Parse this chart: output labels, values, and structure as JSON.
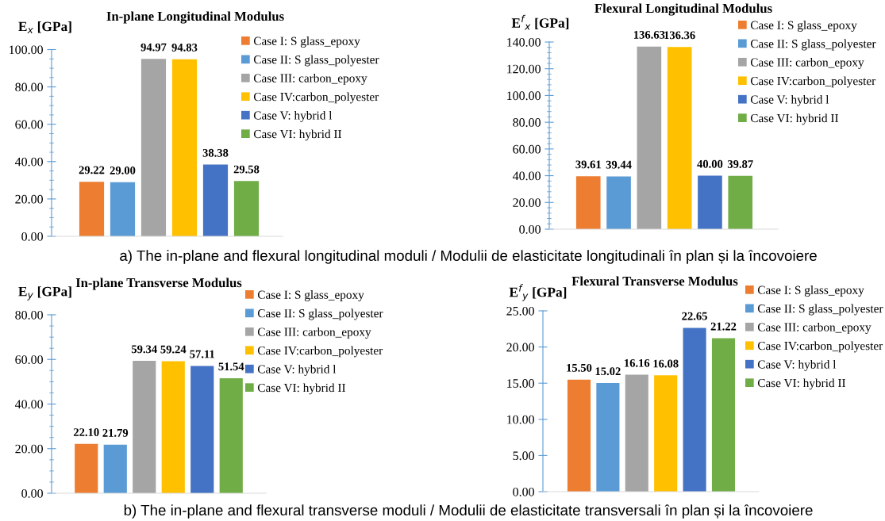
{
  "chart_data": [
    {
      "type": "bar",
      "title": "In-plane Longitudinal Modulus",
      "ylabel": "E$_{x}$ [GPa]",
      "categories": [
        null
      ],
      "legend": "right",
      "tick_labels": "y",
      "ylim": [
        0,
        100
      ],
      "yticks": [
        {
          "value": 0,
          "label": "0.00"
        },
        {
          "value": 20,
          "label": "20.00"
        },
        {
          "value": 40,
          "label": "40.00"
        },
        {
          "value": 60,
          "label": "60.00"
        },
        {
          "value": 80,
          "label": "80.00"
        },
        {
          "value": 100,
          "label": "100.00"
        }
      ],
      "series": [
        {
          "name": "Case I: S glass_epoxy",
          "color": "#ed7d31",
          "values": [
            29.22
          ],
          "value_labels": [
            "29.22"
          ]
        },
        {
          "name": "Case II: S glass_polyester",
          "color": "#5b9bd5",
          "values": [
            29.0
          ],
          "value_labels": [
            "29.00"
          ]
        },
        {
          "name": "Case III: carbon_epoxy",
          "color": "#a5a5a5",
          "values": [
            94.97
          ],
          "value_labels": [
            "94.97"
          ]
        },
        {
          "name": "Case IV:carbon_polyester",
          "color": "#ffc000",
          "values": [
            94.83
          ],
          "value_labels": [
            "94.83"
          ]
        },
        {
          "name": "Case V: hybrid l",
          "color": "#4472c4",
          "values": [
            38.38
          ],
          "value_labels": [
            "38.38"
          ]
        },
        {
          "name": "Case VI: hybrid II",
          "color": "#70ad47",
          "values": [
            29.58
          ],
          "value_labels": [
            "29.58"
          ]
        }
      ]
    },
    {
      "type": "bar",
      "title": "Flexural Longitudinal Modulus",
      "ylabel": "E$^{f}$$_{x}$ [GPa]",
      "categories": [
        null
      ],
      "legend": "right",
      "tick_labels": "y",
      "ylim": [
        0,
        140
      ],
      "yticks": [
        {
          "value": 0,
          "label": "0.00"
        },
        {
          "value": 20,
          "label": "20.00"
        },
        {
          "value": 40,
          "label": "40.00"
        },
        {
          "value": 60,
          "label": "60.00"
        },
        {
          "value": 80,
          "label": "80.00"
        },
        {
          "value": 100,
          "label": "100.00"
        },
        {
          "value": 120,
          "label": "120.00"
        },
        {
          "value": 140,
          "label": "140.00"
        }
      ],
      "annotations": [
        "a) The in-plane and flexural longitudinal moduli / Modulii de elasticitate longitudinali în plan și la încovoiere"
      ],
      "series": [
        {
          "name": "Case I: S glass_epoxy",
          "color": "#ed7d31",
          "values": [
            39.61
          ],
          "value_labels": [
            "39.61"
          ]
        },
        {
          "name": "Case II: S glass_polyester",
          "color": "#5b9bd5",
          "values": [
            39.44
          ],
          "value_labels": [
            "39.44"
          ]
        },
        {
          "name": "Case III: carbon_epoxy",
          "color": "#a5a5a5",
          "values": [
            136.63
          ],
          "value_labels": [
            "136.63"
          ]
        },
        {
          "name": "Case IV:carbon_polyester",
          "color": "#ffc000",
          "values": [
            136.36
          ],
          "value_labels": [
            "136.36"
          ]
        },
        {
          "name": "Case V: hybrid l",
          "color": "#4472c4",
          "values": [
            40.0
          ],
          "value_labels": [
            "40.00"
          ]
        },
        {
          "name": "Case VI: hybrid II",
          "color": "#70ad47",
          "values": [
            39.87
          ],
          "value_labels": [
            "39.87"
          ]
        }
      ]
    },
    {
      "type": "bar",
      "title": "In-plane Transverse Modulus",
      "ylabel": "E$_{y}$ [GPa]",
      "categories": [
        null
      ],
      "legend": "right",
      "tick_labels": "y",
      "ylim": [
        0,
        80
      ],
      "yticks": [
        {
          "value": 0,
          "label": "0.00"
        },
        {
          "value": 20,
          "label": "20.00"
        },
        {
          "value": 40,
          "label": "40.00"
        },
        {
          "value": 60,
          "label": "60.00"
        },
        {
          "value": 80,
          "label": "80.00"
        }
      ],
      "series": [
        {
          "name": "Case I: S glass_epoxy",
          "color": "#ed7d31",
          "values": [
            22.1
          ],
          "value_labels": [
            "22.10"
          ]
        },
        {
          "name": "Case II: S glass_polyester",
          "color": "#5b9bd5",
          "values": [
            21.79
          ],
          "value_labels": [
            "21.79"
          ]
        },
        {
          "name": "Case III: carbon_epoxy",
          "color": "#a5a5a5",
          "values": [
            59.34
          ],
          "value_labels": [
            "59.34"
          ]
        },
        {
          "name": "Case IV:carbon_polyester",
          "color": "#ffc000",
          "values": [
            59.24
          ],
          "value_labels": [
            "59.24"
          ]
        },
        {
          "name": "Case V: hybrid l",
          "color": "#4472c4",
          "values": [
            57.11
          ],
          "value_labels": [
            "57.11"
          ]
        },
        {
          "name": "Case VI: hybrid II",
          "color": "#70ad47",
          "values": [
            51.54
          ],
          "value_labels": [
            "51.54"
          ]
        }
      ]
    },
    {
      "type": "bar",
      "title": "Flexural Transverse Modulus",
      "ylabel": "E$^{f}$$_{y}$ [GPa]",
      "categories": [
        null
      ],
      "legend": "right",
      "tick_labels": "y",
      "ylim": [
        0,
        25
      ],
      "yticks": [
        {
          "value": 0,
          "label": "0.00"
        },
        {
          "value": 5,
          "label": "5.00"
        },
        {
          "value": 10,
          "label": "10.00"
        },
        {
          "value": 15,
          "label": "15.00"
        },
        {
          "value": 20,
          "label": "20.00"
        },
        {
          "value": 25,
          "label": "25.00"
        }
      ],
      "annotations": [
        "b) The in-plane and flexural transverse moduli / Modulii de elasticitate transversali în plan și la încovoiere"
      ],
      "series": [
        {
          "name": "Case I: S glass_epoxy",
          "color": "#ed7d31",
          "values": [
            15.5
          ],
          "value_labels": [
            "15.50"
          ]
        },
        {
          "name": "Case II: S glass_polyester",
          "color": "#5b9bd5",
          "values": [
            15.02
          ],
          "value_labels": [
            "15.02"
          ]
        },
        {
          "name": "Case III: carbon_epoxy",
          "color": "#a5a5a5",
          "values": [
            16.16
          ],
          "value_labels": [
            "16.16"
          ]
        },
        {
          "name": "Case IV:carbon_polyester",
          "color": "#ffc000",
          "values": [
            16.08
          ],
          "value_labels": [
            "16.08"
          ]
        },
        {
          "name": "Case V: hybrid l",
          "color": "#4472c4",
          "values": [
            22.65
          ],
          "value_labels": [
            "22.65"
          ]
        },
        {
          "name": "Case VI: hybrid II",
          "color": "#70ad47",
          "values": [
            21.22
          ],
          "value_labels": [
            "21.22"
          ]
        }
      ]
    }
  ]
}
